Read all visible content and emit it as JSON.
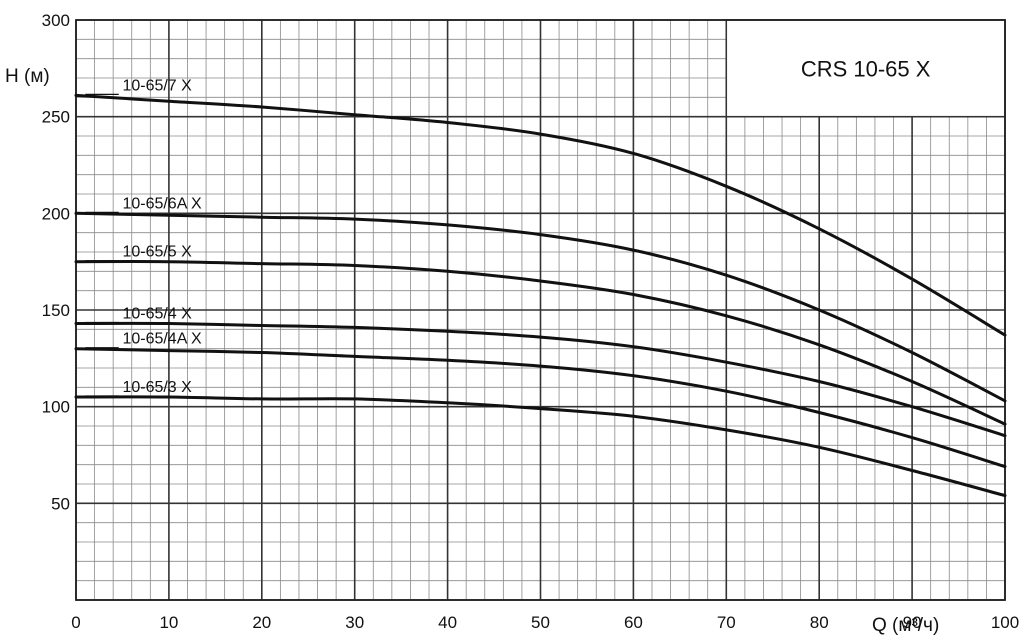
{
  "chart_data": {
    "type": "line",
    "title": "CRS 10-65 X",
    "xlabel": "Q (м³/ч)",
    "ylabel": "H (м)",
    "xlim": [
      0,
      100
    ],
    "ylim": [
      0,
      300
    ],
    "x_ticks": [
      "0",
      "10",
      "20",
      "30",
      "40",
      "50",
      "60",
      "70",
      "80",
      "90",
      "100"
    ],
    "y_ticks": [
      "50",
      "100",
      "150",
      "200",
      "250",
      "300"
    ],
    "grid": true,
    "legend": "none",
    "colors": {
      "line": "#111111",
      "grid_major": "#333333",
      "grid_minor": "#8a8a8a"
    },
    "x": [
      0,
      10,
      20,
      30,
      40,
      50,
      60,
      70,
      80,
      90,
      100
    ],
    "series": [
      {
        "name": "10-65/7 X",
        "values": [
          261,
          258,
          255,
          251,
          247,
          241,
          231,
          214,
          192,
          166,
          137
        ]
      },
      {
        "name": "10-65/6A X",
        "values": [
          200,
          199,
          198,
          197,
          194,
          189,
          181,
          168,
          150,
          128,
          103
        ]
      },
      {
        "name": "10-65/5 X",
        "values": [
          175,
          175,
          174,
          173,
          170,
          165,
          158,
          147,
          132,
          113,
          91
        ]
      },
      {
        "name": "10-65/4 X",
        "values": [
          143,
          143,
          142,
          141,
          139,
          136,
          131,
          123,
          113,
          100,
          85
        ]
      },
      {
        "name": "10-65/4A X",
        "values": [
          130,
          129,
          128,
          126,
          124,
          121,
          116,
          108,
          97,
          84,
          69
        ]
      },
      {
        "name": "10-65/3 X",
        "values": [
          105,
          105,
          104,
          104,
          102,
          99,
          95,
          88,
          79,
          67,
          54
        ]
      }
    ]
  }
}
